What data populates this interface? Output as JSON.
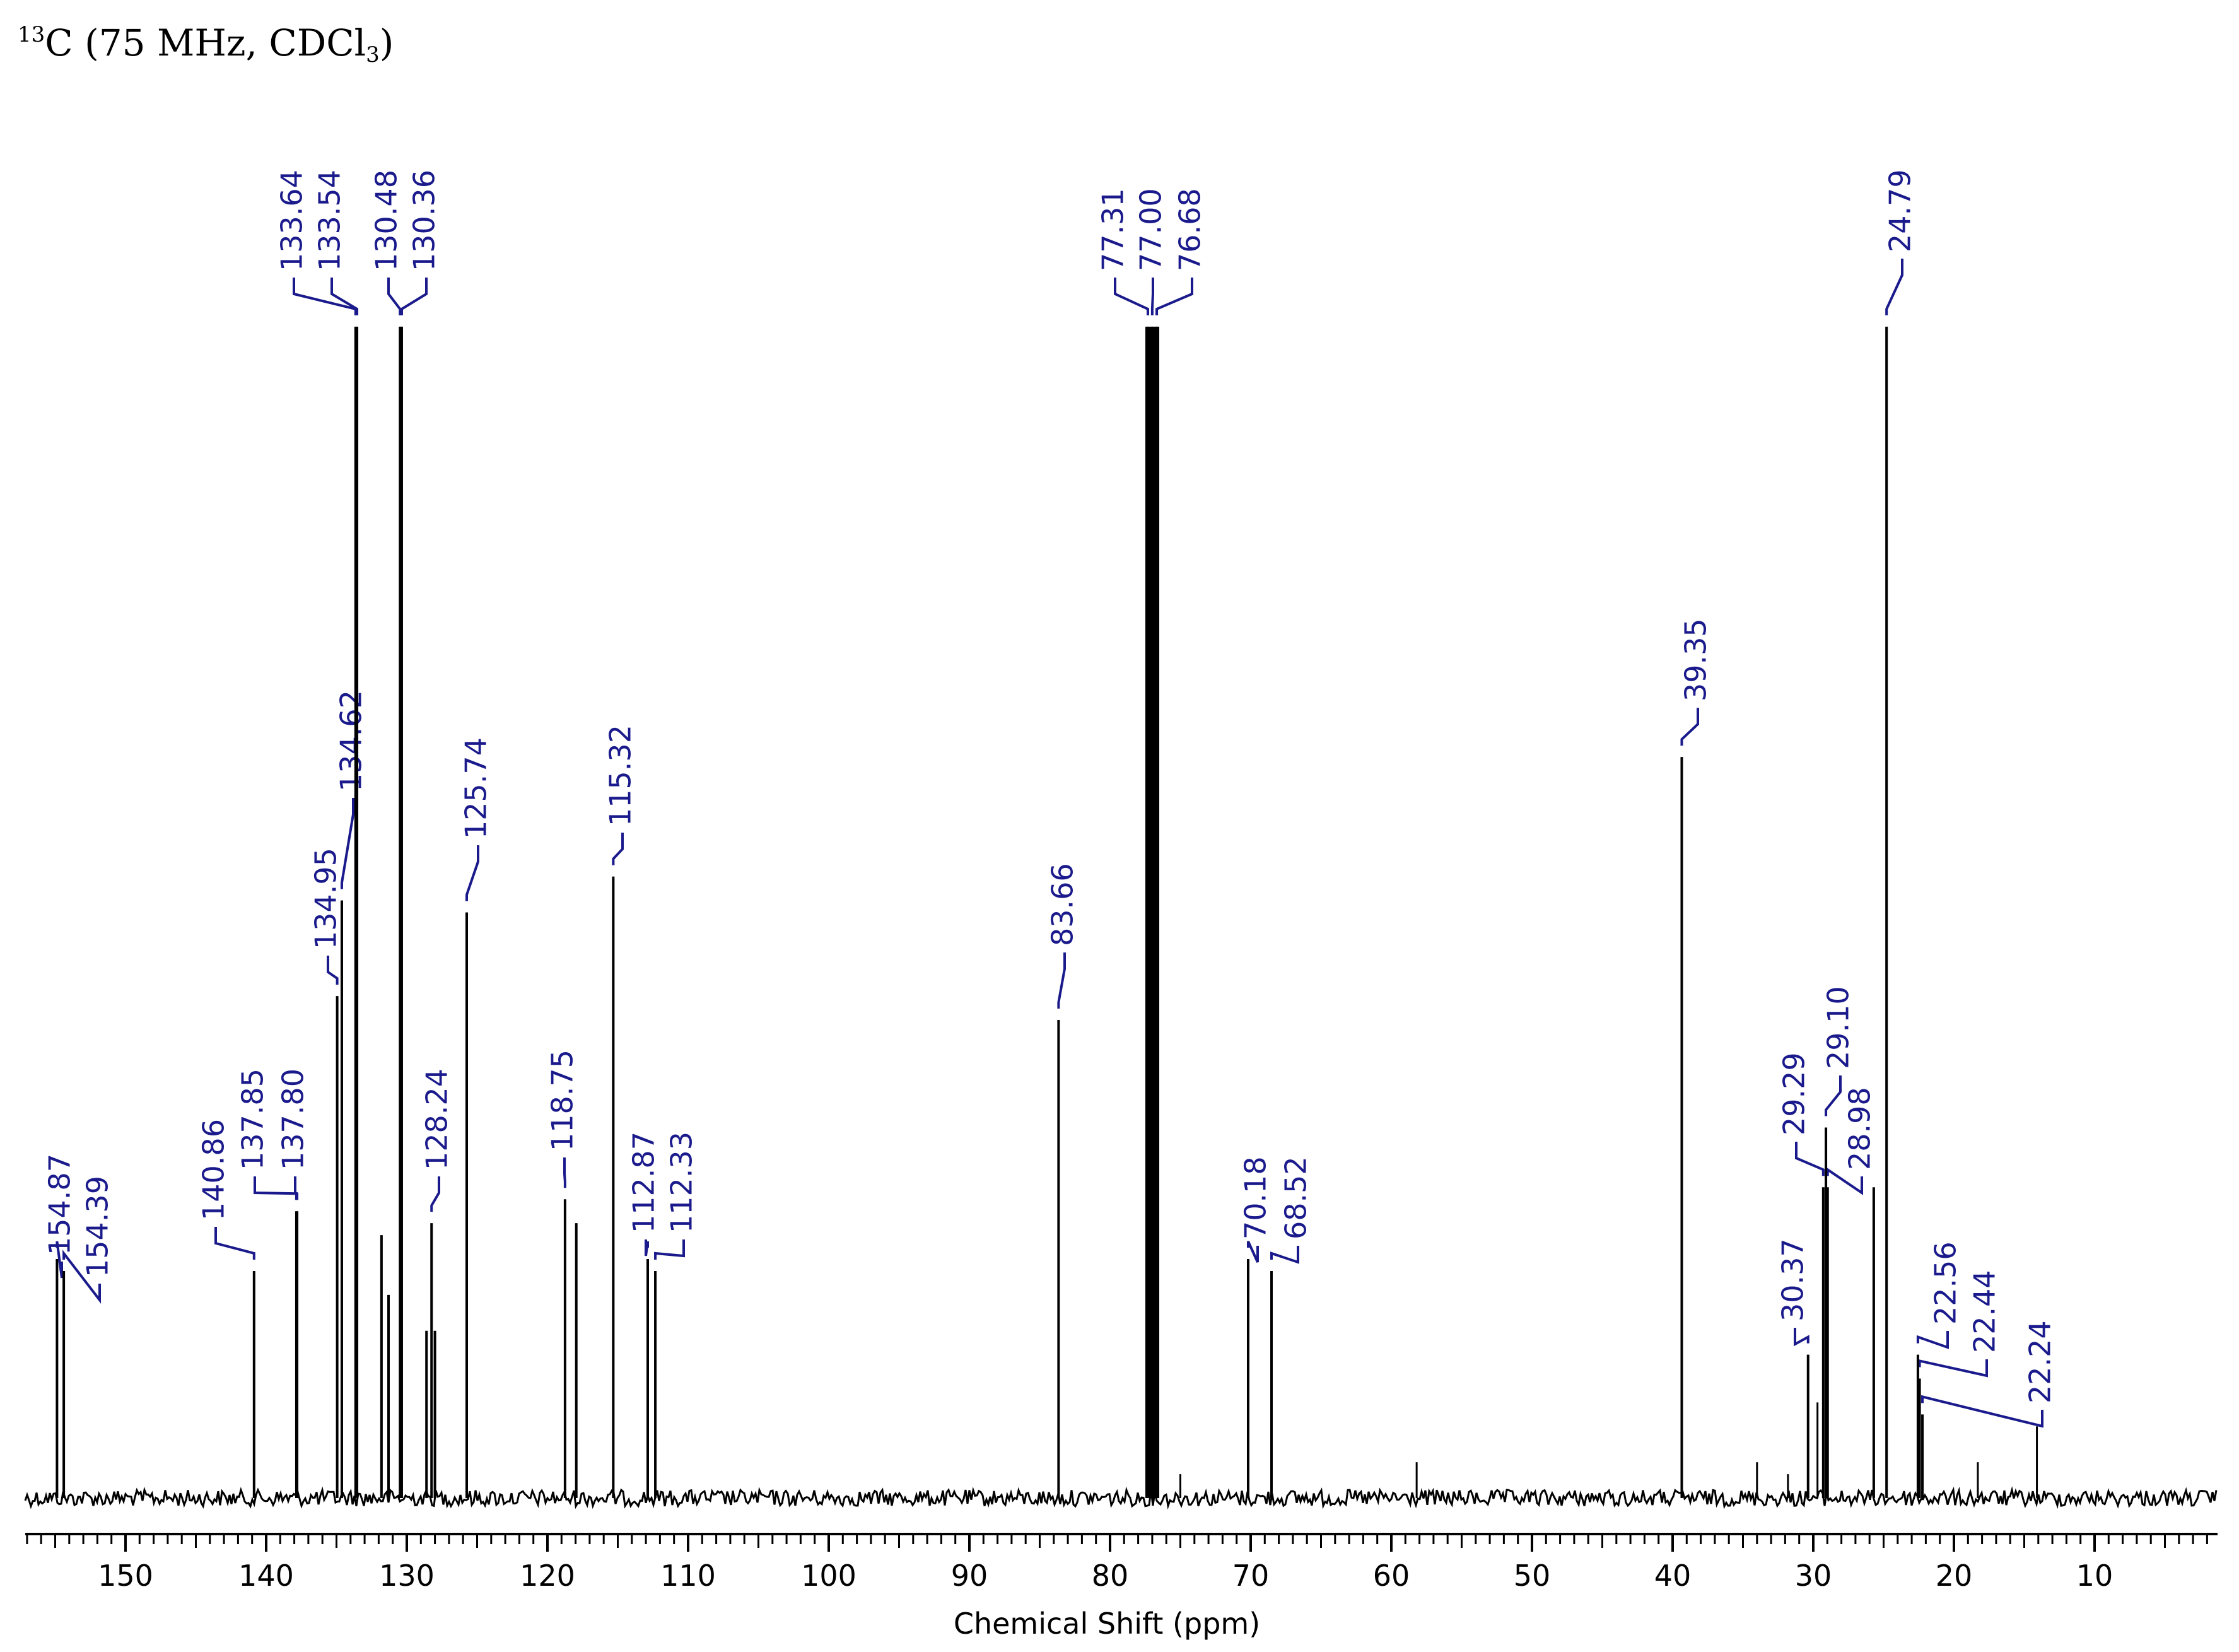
{
  "title": {
    "sup": "13",
    "main": "C (75 MHz, CDCl",
    "sub": "3",
    "close": ")"
  },
  "colors": {
    "spectrum": "#000000",
    "annotation": "#1a1a8c",
    "background": "#ffffff"
  },
  "chart_data": {
    "type": "line",
    "xlabel": "Chemical Shift (ppm)",
    "ylabel": "",
    "xlim": [
      157.5,
      1.0
    ],
    "x_reversed": true,
    "major_ticks": [
      150,
      140,
      130,
      120,
      110,
      100,
      90,
      80,
      70,
      60,
      50,
      40,
      30,
      20,
      10
    ],
    "tick_labels": [
      "150",
      "140",
      "130",
      "120",
      "110",
      "100",
      "90",
      "80",
      "70",
      "60",
      "50",
      "40",
      "30",
      "20",
      "10"
    ],
    "minor_tick_step": 1,
    "legend": "none",
    "grid": false,
    "peaks": [
      {
        "ppm": 154.87,
        "intensity": 0.2,
        "label": "154.87"
      },
      {
        "ppm": 154.39,
        "intensity": 0.19,
        "label": "154.39"
      },
      {
        "ppm": 140.86,
        "intensity": 0.19,
        "label": "140.86"
      },
      {
        "ppm": 137.85,
        "intensity": 0.24,
        "label": "137.85"
      },
      {
        "ppm": 137.8,
        "intensity": 0.24,
        "label": "137.80"
      },
      {
        "ppm": 134.95,
        "intensity": 0.42,
        "label": "134.95"
      },
      {
        "ppm": 134.62,
        "intensity": 0.5,
        "label": "134.62"
      },
      {
        "ppm": 133.64,
        "intensity": 0.98,
        "label": "133.64"
      },
      {
        "ppm": 133.54,
        "intensity": 0.98,
        "label": "133.54"
      },
      {
        "ppm": 131.8,
        "intensity": 0.22,
        "label": ""
      },
      {
        "ppm": 131.3,
        "intensity": 0.17,
        "label": ""
      },
      {
        "ppm": 130.48,
        "intensity": 0.98,
        "label": "130.48"
      },
      {
        "ppm": 130.36,
        "intensity": 0.98,
        "label": "130.36"
      },
      {
        "ppm": 128.6,
        "intensity": 0.14,
        "label": ""
      },
      {
        "ppm": 128.24,
        "intensity": 0.23,
        "label": "128.24"
      },
      {
        "ppm": 128.0,
        "intensity": 0.14,
        "label": ""
      },
      {
        "ppm": 125.74,
        "intensity": 0.49,
        "label": "125.74"
      },
      {
        "ppm": 118.75,
        "intensity": 0.25,
        "label": "118.75"
      },
      {
        "ppm": 117.95,
        "intensity": 0.23,
        "label": ""
      },
      {
        "ppm": 115.32,
        "intensity": 0.52,
        "label": "115.32"
      },
      {
        "ppm": 112.87,
        "intensity": 0.2,
        "label": "112.87"
      },
      {
        "ppm": 112.33,
        "intensity": 0.19,
        "label": "112.33"
      },
      {
        "ppm": 83.66,
        "intensity": 0.4,
        "label": "83.66"
      },
      {
        "ppm": 77.31,
        "intensity": 0.98,
        "label": "77.31"
      },
      {
        "ppm": 77.0,
        "intensity": 0.98,
        "label": "77.00"
      },
      {
        "ppm": 76.68,
        "intensity": 0.98,
        "label": "76.68"
      },
      {
        "ppm": 70.18,
        "intensity": 0.2,
        "label": "70.18"
      },
      {
        "ppm": 68.52,
        "intensity": 0.19,
        "label": "68.52"
      },
      {
        "ppm": 39.35,
        "intensity": 0.62,
        "label": "39.35"
      },
      {
        "ppm": 30.37,
        "intensity": 0.12,
        "label": "30.37"
      },
      {
        "ppm": 29.29,
        "intensity": 0.26,
        "label": "29.29"
      },
      {
        "ppm": 29.1,
        "intensity": 0.31,
        "label": "29.10"
      },
      {
        "ppm": 28.98,
        "intensity": 0.26,
        "label": "28.98"
      },
      {
        "ppm": 25.7,
        "intensity": 0.26,
        "label": ""
      },
      {
        "ppm": 24.79,
        "intensity": 0.98,
        "label": "24.79"
      },
      {
        "ppm": 22.56,
        "intensity": 0.12,
        "label": "22.56"
      },
      {
        "ppm": 22.44,
        "intensity": 0.1,
        "label": "22.44"
      },
      {
        "ppm": 22.24,
        "intensity": 0.07,
        "label": "22.24"
      }
    ],
    "minor_peaks": [
      {
        "ppm": 75.0,
        "intensity": 0.02
      },
      {
        "ppm": 58.2,
        "intensity": 0.03
      },
      {
        "ppm": 34.0,
        "intensity": 0.03
      },
      {
        "ppm": 31.8,
        "intensity": 0.02
      },
      {
        "ppm": 29.7,
        "intensity": 0.08
      },
      {
        "ppm": 18.3,
        "intensity": 0.03
      },
      {
        "ppm": 14.1,
        "intensity": 0.06
      }
    ]
  }
}
